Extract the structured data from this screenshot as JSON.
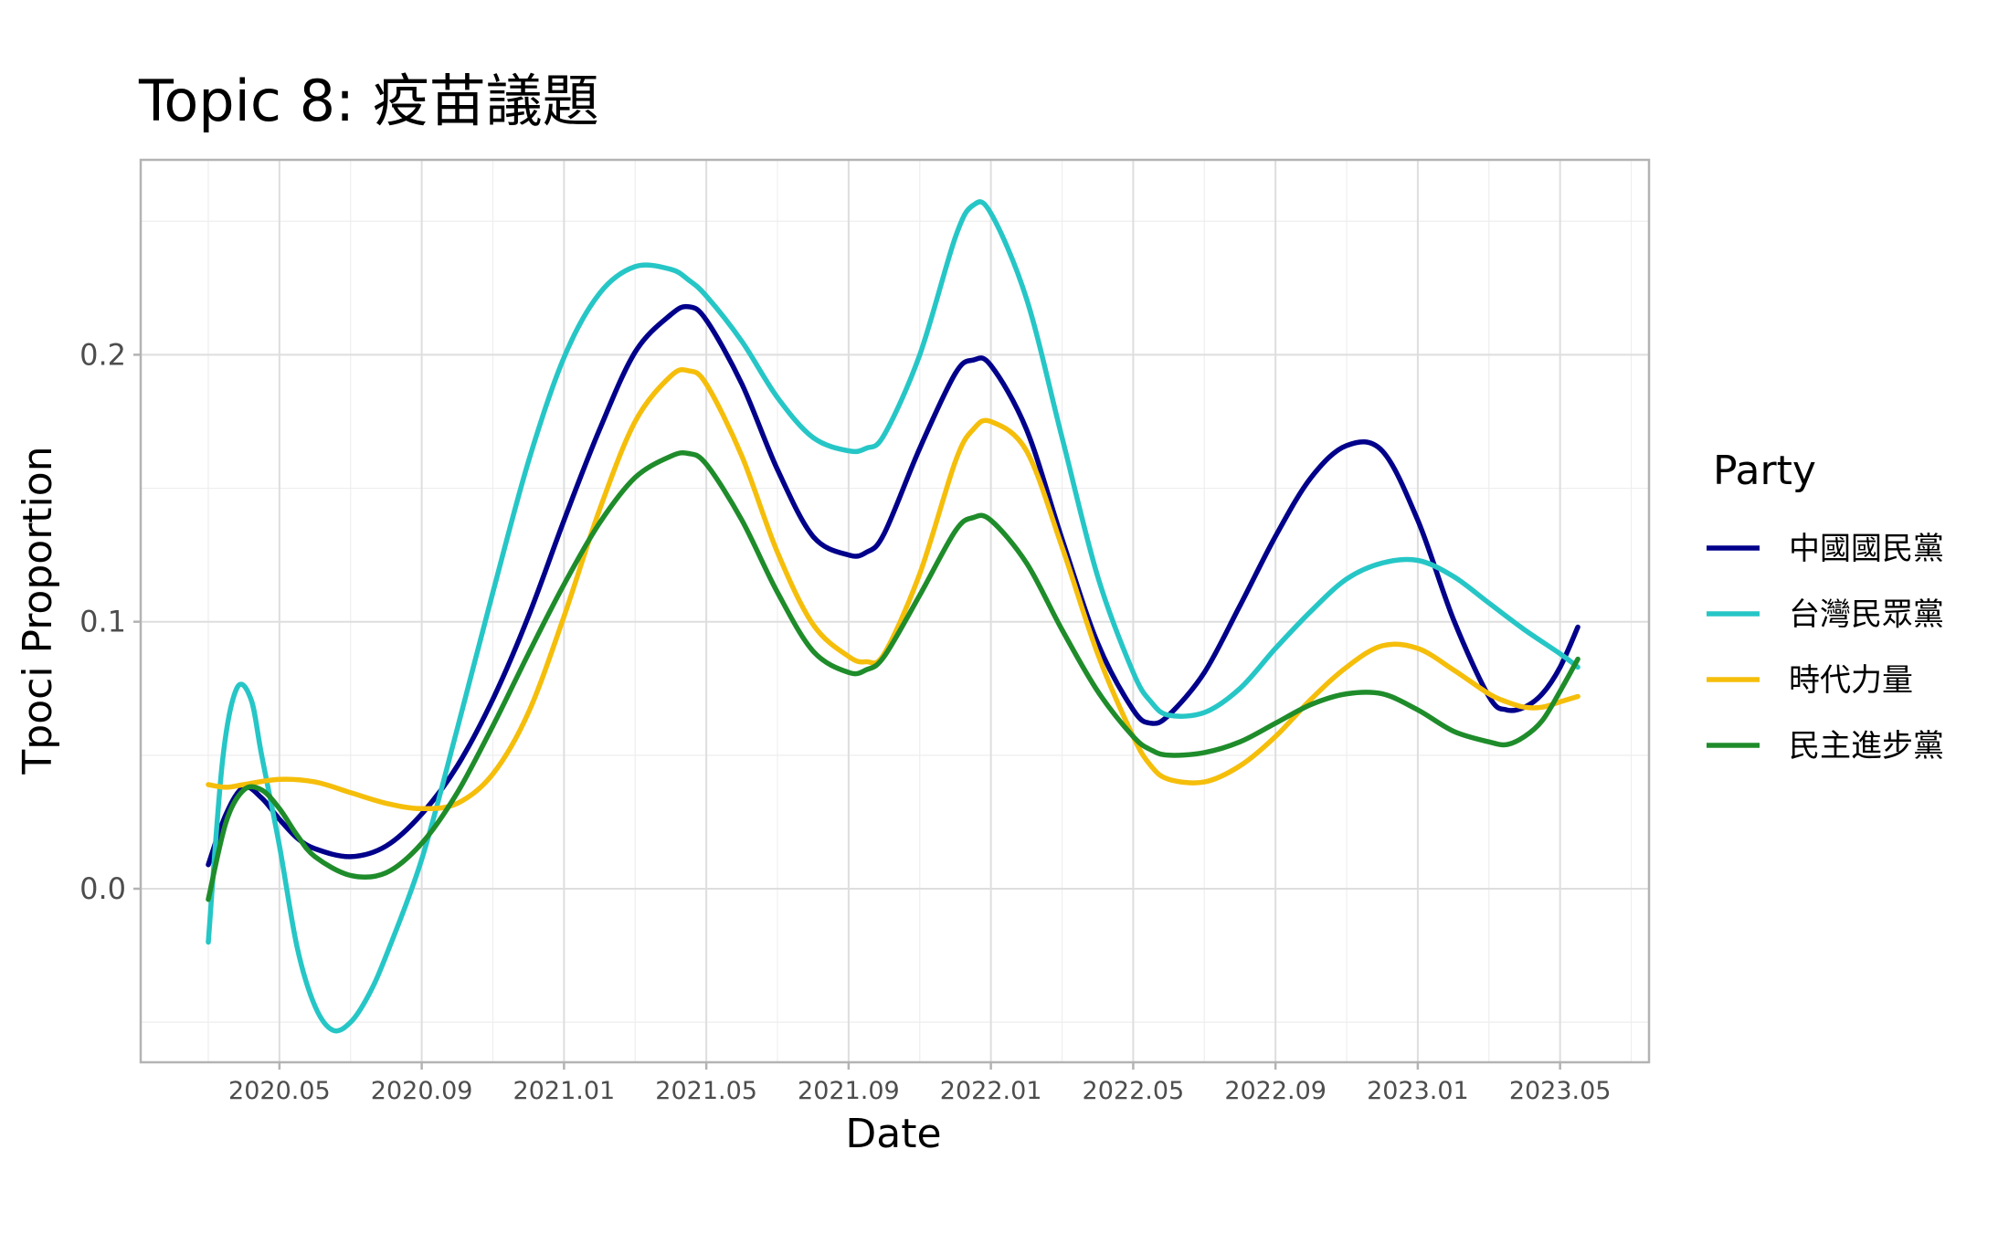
{
  "chart_data": {
    "type": "line",
    "title": "Topic 8: 疫苗議題",
    "xlabel": "Date",
    "ylabel": "Tpoci Proportion",
    "x_tick_labels": [
      "2020.05",
      "2020.09",
      "2021.01",
      "2021.05",
      "2021.09",
      "2022.01",
      "2022.05",
      "2022.09",
      "2023.01",
      "2023.05"
    ],
    "x_tick_values": [
      1.0,
      5.0,
      9.0,
      13.0,
      17.0,
      21.0,
      25.0,
      29.0,
      33.0,
      37.0
    ],
    "xlim": [
      -2.9,
      39.5
    ],
    "x_unit": "months since 2020.04",
    "y_tick_labels": [
      "0.0",
      "0.1",
      "0.2"
    ],
    "y_tick_values": [
      0.0,
      0.1,
      0.2
    ],
    "ylim": [
      -0.065,
      0.273
    ],
    "grid": true,
    "legend": {
      "title": "Party",
      "position": "right"
    },
    "series": [
      {
        "name": "中國國民黨",
        "color": "#00008B",
        "x": [
          -1.0,
          -0.5,
          0.0,
          0.5,
          1.0,
          1.5,
          2.0,
          3.0,
          4.0,
          5.0,
          6.0,
          7.0,
          8.0,
          9.0,
          10.0,
          11.0,
          12.0,
          12.5,
          13.0,
          14.0,
          15.0,
          16.0,
          17.0,
          17.5,
          18.0,
          19.0,
          20.0,
          20.5,
          21.0,
          22.0,
          23.0,
          24.0,
          25.0,
          25.5,
          26.0,
          27.0,
          28.0,
          29.0,
          30.0,
          31.0,
          32.0,
          33.0,
          34.0,
          35.0,
          35.5,
          36.0,
          36.5,
          37.0,
          37.5
        ],
        "y": [
          0.009,
          0.028,
          0.038,
          0.034,
          0.026,
          0.019,
          0.015,
          0.012,
          0.016,
          0.028,
          0.046,
          0.071,
          0.102,
          0.138,
          0.172,
          0.201,
          0.215,
          0.218,
          0.213,
          0.189,
          0.157,
          0.132,
          0.125,
          0.126,
          0.133,
          0.165,
          0.193,
          0.198,
          0.196,
          0.172,
          0.131,
          0.092,
          0.067,
          0.062,
          0.065,
          0.081,
          0.106,
          0.132,
          0.154,
          0.166,
          0.164,
          0.138,
          0.101,
          0.072,
          0.067,
          0.068,
          0.073,
          0.083,
          0.098
        ]
      },
      {
        "name": "台灣民眾黨",
        "color": "#26C6C6",
        "x": [
          -1.0,
          -0.6,
          -0.2,
          0.2,
          0.5,
          1.0,
          1.5,
          2.0,
          2.5,
          3.0,
          3.5,
          4.0,
          5.0,
          6.0,
          7.0,
          8.0,
          9.0,
          10.0,
          11.0,
          12.0,
          12.5,
          13.0,
          14.0,
          15.0,
          16.0,
          17.0,
          17.5,
          18.0,
          19.0,
          20.0,
          20.5,
          21.0,
          22.0,
          23.0,
          24.0,
          25.0,
          25.5,
          26.0,
          27.0,
          28.0,
          29.0,
          30.0,
          31.0,
          32.0,
          33.0,
          34.0,
          35.0,
          36.0,
          37.0,
          37.5
        ],
        "y": [
          -0.02,
          0.048,
          0.075,
          0.071,
          0.05,
          0.016,
          -0.022,
          -0.044,
          -0.053,
          -0.05,
          -0.04,
          -0.025,
          0.011,
          0.06,
          0.111,
          0.16,
          0.199,
          0.223,
          0.233,
          0.232,
          0.228,
          0.222,
          0.205,
          0.184,
          0.169,
          0.164,
          0.165,
          0.17,
          0.2,
          0.244,
          0.256,
          0.253,
          0.221,
          0.169,
          0.117,
          0.081,
          0.07,
          0.065,
          0.066,
          0.075,
          0.09,
          0.104,
          0.116,
          0.122,
          0.123,
          0.117,
          0.107,
          0.097,
          0.088,
          0.083
        ]
      },
      {
        "name": "時代力量",
        "color": "#F5BE0A",
        "x": [
          -1.0,
          -0.5,
          0.0,
          1.0,
          2.0,
          3.0,
          4.0,
          5.0,
          6.0,
          7.0,
          8.0,
          9.0,
          10.0,
          11.0,
          12.0,
          12.5,
          13.0,
          14.0,
          15.0,
          16.0,
          17.0,
          17.5,
          18.0,
          19.0,
          20.0,
          20.5,
          21.0,
          22.0,
          23.0,
          24.0,
          25.0,
          25.5,
          26.0,
          27.0,
          28.0,
          29.0,
          30.0,
          31.0,
          32.0,
          33.0,
          34.0,
          35.0,
          35.5,
          36.0,
          36.5,
          37.0,
          37.5
        ],
        "y": [
          0.039,
          0.038,
          0.039,
          0.041,
          0.04,
          0.036,
          0.032,
          0.03,
          0.032,
          0.043,
          0.066,
          0.102,
          0.142,
          0.175,
          0.192,
          0.194,
          0.189,
          0.162,
          0.126,
          0.099,
          0.087,
          0.085,
          0.088,
          0.118,
          0.16,
          0.172,
          0.175,
          0.164,
          0.128,
          0.088,
          0.057,
          0.046,
          0.041,
          0.04,
          0.046,
          0.057,
          0.071,
          0.083,
          0.091,
          0.09,
          0.082,
          0.073,
          0.07,
          0.068,
          0.068,
          0.07,
          0.072
        ]
      },
      {
        "name": "民主進步黨",
        "color": "#1E8C2A",
        "x": [
          -1.0,
          -0.5,
          0.0,
          0.5,
          1.0,
          1.5,
          2.0,
          3.0,
          4.0,
          5.0,
          6.0,
          7.0,
          8.0,
          9.0,
          10.0,
          11.0,
          12.0,
          12.5,
          13.0,
          14.0,
          15.0,
          16.0,
          17.0,
          17.5,
          18.0,
          19.0,
          20.0,
          20.5,
          21.0,
          22.0,
          23.0,
          24.0,
          25.0,
          25.5,
          26.0,
          27.0,
          28.0,
          29.0,
          30.0,
          31.0,
          32.0,
          33.0,
          34.0,
          35.0,
          35.5,
          36.0,
          36.5,
          37.0,
          37.5
        ],
        "y": [
          -0.004,
          0.025,
          0.037,
          0.037,
          0.03,
          0.02,
          0.012,
          0.005,
          0.006,
          0.017,
          0.036,
          0.061,
          0.088,
          0.114,
          0.137,
          0.154,
          0.162,
          0.163,
          0.159,
          0.138,
          0.111,
          0.089,
          0.081,
          0.082,
          0.087,
          0.11,
          0.134,
          0.139,
          0.138,
          0.122,
          0.097,
          0.074,
          0.057,
          0.052,
          0.05,
          0.051,
          0.055,
          0.062,
          0.069,
          0.073,
          0.073,
          0.067,
          0.059,
          0.055,
          0.054,
          0.057,
          0.063,
          0.074,
          0.086
        ]
      }
    ]
  }
}
